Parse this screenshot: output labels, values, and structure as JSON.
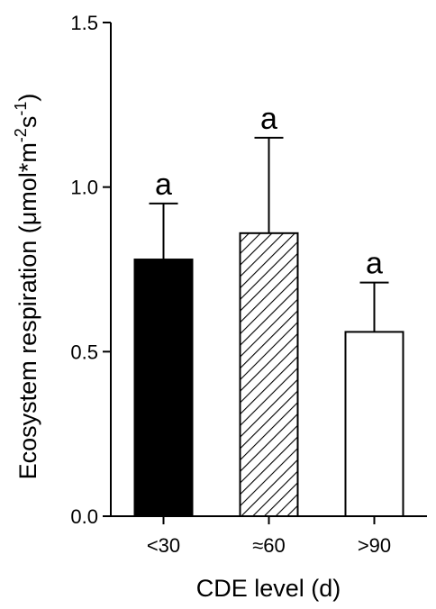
{
  "chart_data": {
    "type": "bar",
    "categories": [
      "<30",
      "≈60",
      ">90"
    ],
    "values": [
      0.78,
      0.86,
      0.56
    ],
    "errors": [
      0.17,
      0.29,
      0.15
    ],
    "significance_letters": [
      "a",
      "a",
      "a"
    ],
    "fills": [
      "solid",
      "hatched",
      "open"
    ],
    "xlabel": "CDE level (d)",
    "ylabel_prefix": "Ecosystem respiration (μmol*m",
    "ylabel_sup1": "-2",
    "ylabel_mid": "s",
    "ylabel_sup2": "-1",
    "ylabel_suffix": ")",
    "ylim": [
      0.0,
      1.5
    ],
    "yticks": [
      "0.0",
      "0.5",
      "1.0",
      "1.5"
    ],
    "colors": {
      "bar_edge": "#000000",
      "solid_fill": "#000000",
      "open_fill": "#ffffff"
    }
  }
}
